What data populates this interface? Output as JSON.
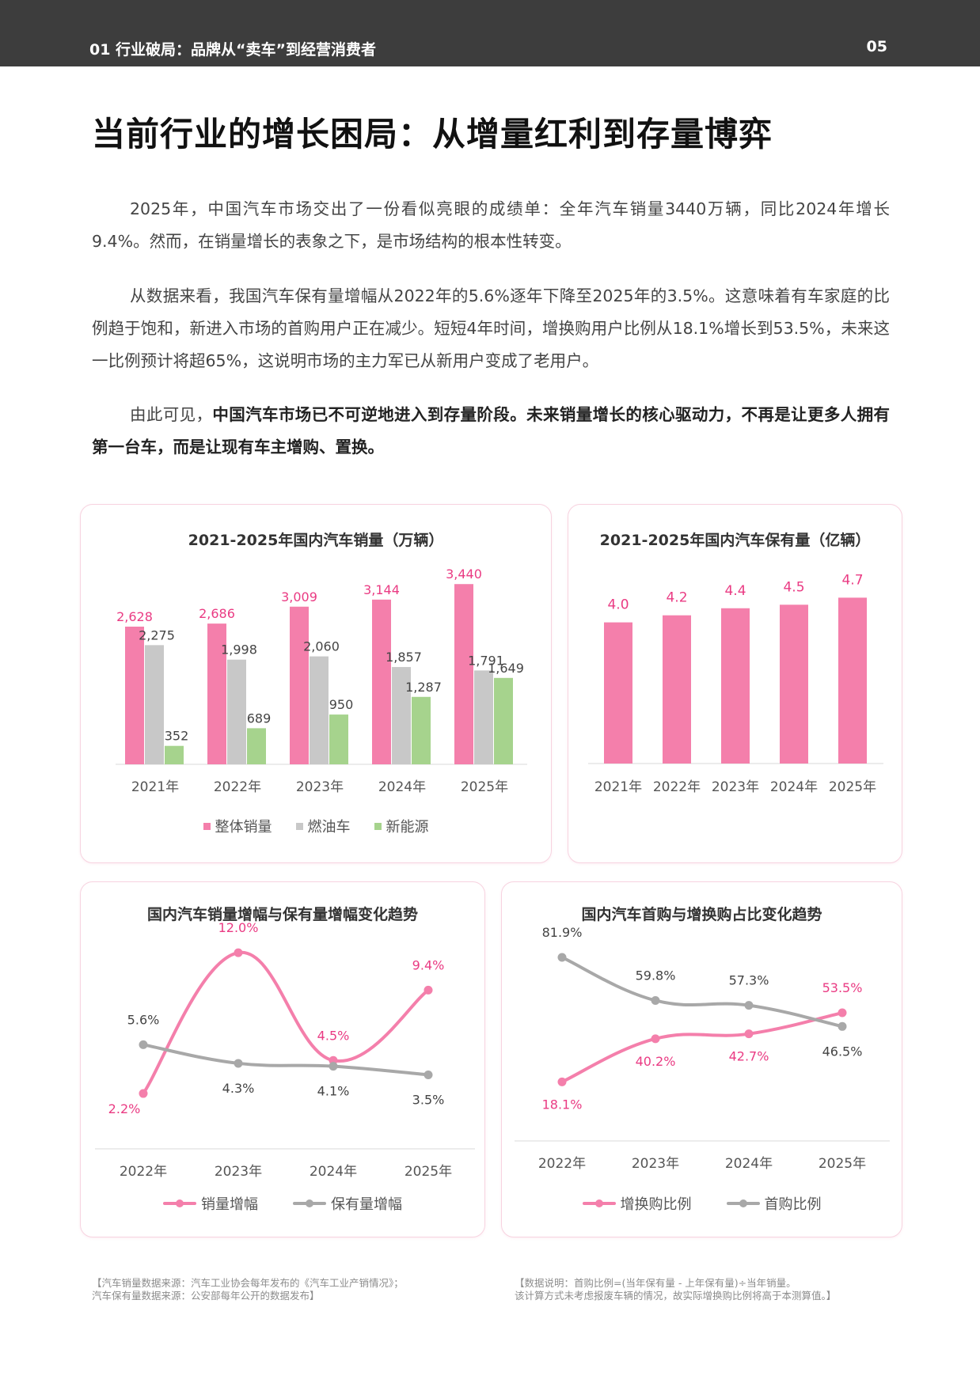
{
  "header": {
    "section": "01  行业破局：品牌从“卖车”到经营消费者",
    "page": "05"
  },
  "title": "当前行业的增长困局：从增量红利到存量博弈",
  "paragraphs": {
    "p1": "2025年，中国汽车市场交出了一份看似亮眼的成绩单：全年汽车销量3440万辆，同比2024年增长9.4%。然而，在销量增长的表象之下，是市场结构的根本性转变。",
    "p2": "从数据来看，我国汽车保有量增幅从2022年的5.6%逐年下降至2025年的3.5%。这意味着有车家庭的比例趋于饱和，新进入市场的首购用户正在减少。短短4年时间，增换购用户比例从18.1%增长到53.5%，未来这一比例预计将超65%，这说明市场的主力军已从新用户变成了老用户。",
    "p3_lead": "由此可见，",
    "p3_bold": "中国汽车市场已不可逆地进入到存量阶段。未来销量增长的核心驱动力，不再是让更多人拥有第一台车，而是让现有车主增购、置换。"
  },
  "colors": {
    "pink": "#f47fab",
    "gray": "#c8c8c8",
    "green": "#a6d38d",
    "pink_text": "#ea3b83",
    "gray_line": "#a8a8a8"
  },
  "chart_data": [
    {
      "type": "bar",
      "title": "2021-2025年国内汽车销量（万辆）",
      "categories": [
        "2021年",
        "2022年",
        "2023年",
        "2024年",
        "2025年"
      ],
      "series": [
        {
          "name": "整体销量",
          "values": [
            2628,
            2686,
            3009,
            3144,
            3440
          ]
        },
        {
          "name": "燃油车",
          "values": [
            2275,
            1998,
            2060,
            1857,
            1791
          ]
        },
        {
          "name": "新能源",
          "values": [
            352,
            689,
            950,
            1287,
            1649
          ]
        }
      ],
      "labels": [
        [
          "2,628",
          "2,686",
          "3,009",
          "3,144",
          "3,440"
        ],
        [
          "2,275",
          "1,998",
          "2,060",
          "1,857",
          "1,791"
        ],
        [
          "352",
          "689",
          "950",
          "1,287",
          "1,649"
        ]
      ],
      "ylim": [
        0,
        3700
      ],
      "grid": false,
      "legend": "bottom"
    },
    {
      "type": "bar",
      "title": "2021-2025年国内汽车保有量（亿辆）",
      "categories": [
        "2021年",
        "2022年",
        "2023年",
        "2024年",
        "2025年"
      ],
      "values": [
        4.0,
        4.2,
        4.4,
        4.5,
        4.7
      ],
      "labels": [
        "4.0",
        "4.2",
        "4.4",
        "4.5",
        "4.7"
      ],
      "ylim": [
        0,
        5.0
      ],
      "grid": false
    },
    {
      "type": "line",
      "title": "国内汽车销量增幅与保有量增幅变化趋势",
      "categories": [
        "2022年",
        "2023年",
        "2024年",
        "2025年"
      ],
      "series": [
        {
          "name": "销量增幅",
          "values": [
            2.2,
            12.0,
            4.5,
            9.4
          ],
          "labels": [
            "2.2%",
            "12.0%",
            "4.5%",
            "9.4%"
          ]
        },
        {
          "name": "保有量增幅",
          "values": [
            5.6,
            4.3,
            4.1,
            3.5
          ],
          "labels": [
            "5.6%",
            "4.3%",
            "4.1%",
            "3.5%"
          ]
        }
      ],
      "ylim": [
        0,
        13
      ],
      "grid": false,
      "legend": "bottom"
    },
    {
      "type": "line",
      "title": "国内汽车首购与增换购占比变化趋势",
      "categories": [
        "2022年",
        "2023年",
        "2024年",
        "2025年"
      ],
      "series": [
        {
          "name": "增换购比例",
          "values": [
            18.1,
            40.2,
            42.7,
            53.5
          ],
          "labels": [
            "18.1%",
            "40.2%",
            "42.7%",
            "53.5%"
          ]
        },
        {
          "name": "首购比例",
          "values": [
            81.9,
            59.8,
            57.3,
            46.5
          ],
          "labels": [
            "81.9%",
            "59.8%",
            "57.3%",
            "46.5%"
          ]
        }
      ],
      "ylim": [
        0,
        90
      ],
      "grid": false,
      "legend": "bottom"
    }
  ],
  "notes": {
    "left": "【汽车销量数据来源：汽车工业协会每年发布的《汽车工业产销情况》；\n汽车保有量数据来源：公安部每年公开的数据发布】",
    "right": "【数据说明：首购比例=(当年保有量 - 上年保有量)÷当年销量。\n该计算方式未考虑报废车辆的情况，故实际增换购比例将高于本测算值。】"
  }
}
